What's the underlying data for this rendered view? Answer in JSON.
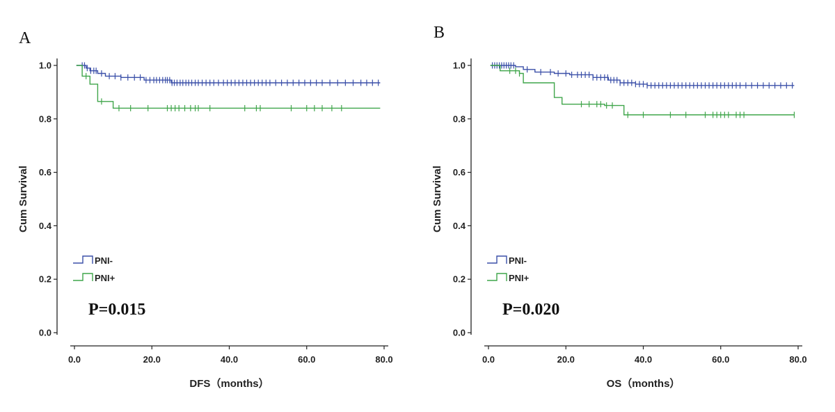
{
  "chart_data": [
    {
      "type": "line",
      "panel": "A",
      "xlabel": "DFS（months）",
      "ylabel": "Cum Survival",
      "xlim": [
        0,
        80
      ],
      "ylim": [
        0,
        1.0
      ],
      "xticks": [
        "0.0",
        "20.0",
        "40.0",
        "60.0",
        "80.0"
      ],
      "yticks": [
        "0.0",
        "0.2",
        "0.4",
        "0.6",
        "0.8",
        "1.0"
      ],
      "legend": {
        "position": "lower-left"
      },
      "annotation": "P=0.015",
      "series": [
        {
          "name": "PNI-",
          "color": "#3a4fa8",
          "steps": [
            [
              0.5,
              1.0
            ],
            [
              3,
              0.99
            ],
            [
              4,
              0.98
            ],
            [
              6,
              0.97
            ],
            [
              8,
              0.96
            ],
            [
              12,
              0.955
            ],
            [
              18,
              0.945
            ],
            [
              25,
              0.935
            ],
            [
              79,
              0.935
            ]
          ],
          "censors": [
            2,
            2.6,
            3.3,
            4.2,
            5,
            5.6,
            7,
            9,
            10.5,
            12,
            13.8,
            15.5,
            17,
            18.5,
            19.5,
            20.5,
            21.2,
            22,
            22.8,
            23.5,
            24,
            24.6,
            25.2,
            25.8,
            26.5,
            27.3,
            28,
            28.8,
            29.5,
            30.3,
            31.2,
            32,
            33,
            34,
            35,
            36,
            37.2,
            38.5,
            39.5,
            40.5,
            41.5,
            42.5,
            43.5,
            44.5,
            45.5,
            46.5,
            47.5,
            48.5,
            49.5,
            50.5,
            52,
            53.5,
            55,
            56.5,
            58,
            59.5,
            61,
            62.5,
            64,
            66,
            68,
            70,
            72,
            74,
            75.5,
            77,
            78.5
          ]
        },
        {
          "name": "PNI+",
          "color": "#3fa54a",
          "steps": [
            [
              0.5,
              1.0
            ],
            [
              2,
              0.96
            ],
            [
              4,
              0.93
            ],
            [
              6,
              0.865
            ],
            [
              10,
              0.84
            ],
            [
              79,
              0.84
            ]
          ],
          "censors": [
            3,
            7,
            11.5,
            14.5,
            19,
            24,
            25,
            26,
            27,
            28.5,
            30,
            31.2,
            32,
            35,
            44,
            47,
            48,
            56,
            60,
            62,
            64,
            66.5,
            69
          ]
        }
      ]
    },
    {
      "type": "line",
      "panel": "B",
      "xlabel": "OS（months）",
      "ylabel": "Cum Survival",
      "xlim": [
        0,
        80
      ],
      "ylim": [
        0,
        1.0
      ],
      "xticks": [
        "0.0",
        "20.0",
        "40.0",
        "60.0",
        "80.0"
      ],
      "yticks": [
        "0.0",
        "0.2",
        "0.4",
        "0.6",
        "0.8",
        "1.0"
      ],
      "legend": {
        "position": "lower-left"
      },
      "annotation": "P=0.020",
      "series": [
        {
          "name": "PNI-",
          "color": "#3a4fa8",
          "steps": [
            [
              0.5,
              1.0
            ],
            [
              7,
              0.995
            ],
            [
              9,
              0.985
            ],
            [
              12,
              0.975
            ],
            [
              17,
              0.97
            ],
            [
              21,
              0.965
            ],
            [
              27,
              0.955
            ],
            [
              31,
              0.945
            ],
            [
              34,
              0.935
            ],
            [
              38,
              0.93
            ],
            [
              41,
              0.925
            ],
            [
              79,
              0.925
            ]
          ],
          "censors": [
            1,
            1.6,
            2.2,
            2.8,
            3.4,
            4,
            4.6,
            5.2,
            5.8,
            6.5,
            10,
            13.5,
            16,
            18,
            20,
            21.5,
            23,
            24,
            25,
            26,
            27,
            28,
            29,
            30,
            30.8,
            31.6,
            32.4,
            33.2,
            34,
            35,
            36,
            37,
            38,
            39,
            40,
            41,
            42,
            43,
            44,
            45,
            46,
            47,
            48,
            49,
            50,
            51,
            52,
            53,
            54,
            55,
            56,
            57,
            58,
            59,
            60,
            61,
            62,
            63,
            64,
            65,
            66.5,
            68,
            69.5,
            71,
            72.5,
            74,
            75.5,
            77,
            78.5
          ]
        },
        {
          "name": "PNI+",
          "color": "#3fa54a",
          "steps": [
            [
              0.5,
              1.0
            ],
            [
              3,
              0.98
            ],
            [
              8,
              0.97
            ],
            [
              9,
              0.935
            ],
            [
              17,
              0.88
            ],
            [
              19,
              0.855
            ],
            [
              30,
              0.85
            ],
            [
              35,
              0.815
            ],
            [
              79,
              0.815
            ]
          ],
          "censors": [
            5.5,
            7,
            8,
            24,
            26,
            28,
            29,
            30.5,
            32,
            36,
            40,
            47,
            51,
            56,
            58,
            59,
            60,
            61,
            62,
            64,
            65,
            66,
            79
          ]
        }
      ]
    }
  ]
}
